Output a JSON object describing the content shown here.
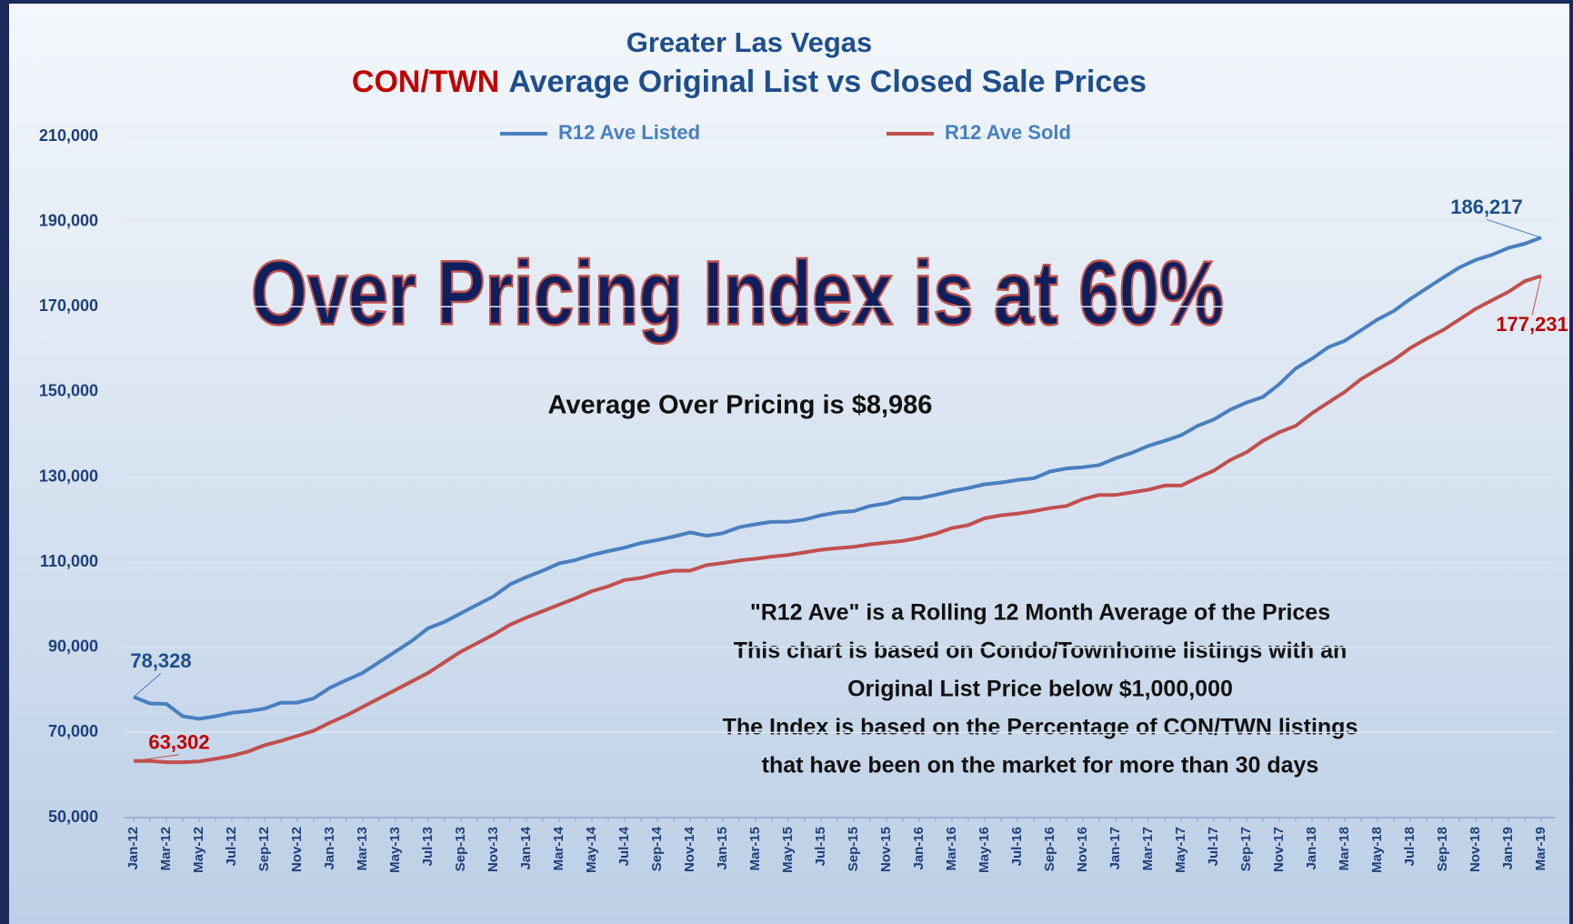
{
  "chart_data": {
    "type": "line",
    "title": "Greater Las Vegas",
    "subtitle": {
      "highlight": "CON/TWN",
      "text": "Average Original List vs Closed Sale Prices"
    },
    "annotation": "Over Pricing Index is at 60%",
    "note": "Average Over Pricing is $8,986",
    "footnotes": [
      "\"R12 Ave\" is a Rolling 12 Month Average of the Prices",
      "This chart is based on Condo/Townhome listings with an",
      "Original List Price below $1,000,000",
      "The Index is based on the Percentage of CON/TWN listings",
      "that have been on the market for more than 30 days"
    ],
    "categories": [
      "Jan-12",
      null,
      "Mar-12",
      null,
      "May-12",
      null,
      "Jul-12",
      null,
      "Sep-12",
      null,
      "Nov-12",
      null,
      "Jan-13",
      null,
      "Mar-13",
      null,
      "May-13",
      null,
      "Jul-13",
      null,
      "Sep-13",
      null,
      "Nov-13",
      null,
      "Jan-14",
      null,
      "Mar-14",
      null,
      "May-14",
      null,
      "Jul-14",
      null,
      "Sep-14",
      null,
      "Nov-14",
      null,
      "Jan-15",
      null,
      "Mar-15",
      null,
      "May-15",
      null,
      "Jul-15",
      null,
      "Sep-15",
      null,
      "Nov-15",
      null,
      "Jan-16",
      null,
      "Mar-16",
      null,
      "May-16",
      null,
      "Jul-16",
      null,
      "Sep-16",
      null,
      "Nov-16",
      null,
      "Jan-17",
      null,
      "Mar-17",
      null,
      "May-17",
      null,
      "Jul-17",
      null,
      "Sep-17",
      null,
      "Nov-17",
      null,
      "Jan-18",
      null,
      "Mar-18",
      null,
      "May-18",
      null,
      "Jul-18",
      null,
      "Sep-18",
      null,
      "Nov-18",
      null,
      "Jan-19",
      null,
      "Mar-19"
    ],
    "series": [
      {
        "name": "R12 Ave Listed",
        "color": "#4a7fbf",
        "values": [
          78328,
          76800,
          76700,
          73800,
          73200,
          73800,
          74600,
          75000,
          75600,
          77000,
          77000,
          78000,
          80500,
          82300,
          84000,
          86500,
          89000,
          91500,
          94500,
          96000,
          98000,
          100000,
          102000,
          104800,
          106500,
          108000,
          109700,
          110500,
          111700,
          112600,
          113400,
          114500,
          115200,
          116000,
          117000,
          116200,
          116800,
          118200,
          118900,
          119500,
          119500,
          120000,
          121000,
          121700,
          122000,
          123200,
          123800,
          125000,
          125000,
          125800,
          126700,
          127400,
          128300,
          128700,
          129300,
          129700,
          131300,
          132000,
          132300,
          132800,
          134400,
          135700,
          137300,
          138500,
          139800,
          142000,
          143500,
          145800,
          147500,
          148800,
          151800,
          155500,
          157800,
          160500,
          162000,
          164500,
          167000,
          169000,
          171800,
          174300,
          176800,
          179200,
          181000,
          182200,
          183800,
          184800,
          186217
        ],
        "value_labels": [
          "78,328",
          null,
          null,
          null,
          null,
          null,
          null,
          null,
          null,
          null,
          null,
          null,
          null,
          null,
          null,
          null,
          null,
          null,
          null,
          null,
          null,
          null,
          null,
          null,
          null,
          null,
          null,
          null,
          null,
          null,
          null,
          null,
          null,
          null,
          null,
          null,
          null,
          null,
          null,
          null,
          null,
          null,
          null,
          null,
          null,
          null,
          null,
          null,
          null,
          null,
          null,
          null,
          null,
          null,
          null,
          null,
          null,
          null,
          null,
          null,
          null,
          null,
          null,
          null,
          null,
          null,
          null,
          null,
          null,
          null,
          null,
          null,
          null,
          null,
          null,
          null,
          null,
          null,
          null,
          null,
          null,
          null,
          null,
          null,
          null,
          null,
          "186,217"
        ]
      },
      {
        "name": "R12 Ave Sold",
        "color": "#c0504d",
        "values": [
          63302,
          63300,
          63000,
          63000,
          63200,
          63800,
          64500,
          65500,
          67000,
          68000,
          69200,
          70400,
          72300,
          74000,
          76000,
          78000,
          80000,
          82000,
          84000,
          86500,
          89000,
          91000,
          93000,
          95300,
          97000,
          98500,
          100000,
          101500,
          103200,
          104300,
          105800,
          106300,
          107300,
          108000,
          108000,
          109300,
          109800,
          110400,
          110800,
          111300,
          111700,
          112300,
          112900,
          113300,
          113600,
          114200,
          114600,
          115000,
          115700,
          116700,
          118000,
          118700,
          120300,
          121000,
          121400,
          122000,
          122700,
          123200,
          124800,
          125800,
          125800,
          126400,
          127000,
          128000,
          128000,
          129800,
          131500,
          134000,
          135800,
          138500,
          140500,
          142000,
          145000,
          147500,
          150000,
          153000,
          155300,
          157500,
          160300,
          162500,
          164500,
          167000,
          169500,
          171500,
          173500,
          176000,
          177231
        ],
        "value_labels": [
          "63,302",
          null,
          null,
          null,
          null,
          null,
          null,
          null,
          null,
          null,
          null,
          null,
          null,
          null,
          null,
          null,
          null,
          null,
          null,
          null,
          null,
          null,
          null,
          null,
          null,
          null,
          null,
          null,
          null,
          null,
          null,
          null,
          null,
          null,
          null,
          null,
          null,
          null,
          null,
          null,
          null,
          null,
          null,
          null,
          null,
          null,
          null,
          null,
          null,
          null,
          null,
          null,
          null,
          null,
          null,
          null,
          null,
          null,
          null,
          null,
          null,
          null,
          null,
          null,
          null,
          null,
          null,
          null,
          null,
          null,
          null,
          null,
          null,
          null,
          null,
          null,
          null,
          null,
          null,
          null,
          null,
          null,
          null,
          null,
          null,
          null,
          "177,231"
        ]
      }
    ],
    "ylim": [
      50000,
      210000
    ],
    "yticks": [
      {
        "value": 50000,
        "label": "50,000"
      },
      {
        "value": 70000,
        "label": "70,000"
      },
      {
        "value": 90000,
        "label": "90,000"
      },
      {
        "value": 110000,
        "label": "110,000"
      },
      {
        "value": 130000,
        "label": "130,000"
      },
      {
        "value": 150000,
        "label": "150,000"
      },
      {
        "value": 170000,
        "label": "170,000"
      },
      {
        "value": 190000,
        "label": "190,000"
      },
      {
        "value": 210000,
        "label": "210,000"
      }
    ],
    "grid": true,
    "legend": "top"
  }
}
